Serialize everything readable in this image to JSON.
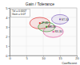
{
  "chart_data": {
    "type": "scatter",
    "title": "Gain / Tolerance",
    "annotations": [
      "Tol = 0.0007",
      "Gain = 0.07"
    ],
    "x_label": "Coefficient",
    "x": [
      9,
      11,
      13,
      15
    ],
    "values": [
      3.4,
      3.0,
      2.5,
      3.8
    ],
    "labels": [
      "JP-40",
      "MK-20",
      "RX-30",
      "ST-10"
    ],
    "x_err": [
      3,
      2.5,
      3,
      2.5
    ],
    "y_err": [
      0.6,
      0.5,
      0.6,
      0.5
    ],
    "colors": [
      "#e03030",
      "#30a030",
      "#e060a0",
      "#8060c0"
    ],
    "marker": "circle",
    "xlim": [
      0,
      20
    ],
    "xticks": [
      0,
      5,
      10,
      15,
      20
    ],
    "ylim": [
      0,
      5
    ],
    "yticks": [
      0,
      1,
      2,
      3,
      4,
      5
    ],
    "grid": true
  }
}
